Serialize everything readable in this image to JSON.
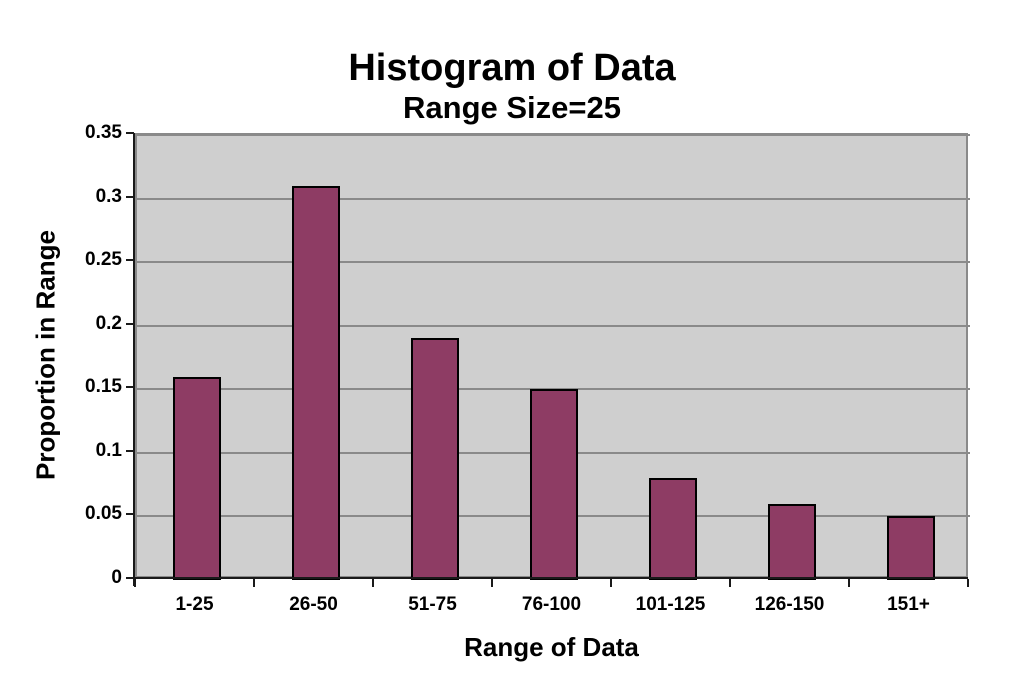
{
  "chart_data": {
    "type": "bar",
    "title": "Histogram of Data",
    "subtitle": "Range Size=25",
    "xlabel": "Range of Data",
    "ylabel": "Proportion in Range",
    "categories": [
      "1-25",
      "26-50",
      "51-75",
      "76-100",
      "101-125",
      "126-150",
      "151+"
    ],
    "values": [
      0.16,
      0.31,
      0.19,
      0.15,
      0.08,
      0.06,
      0.05
    ],
    "ylim": [
      0,
      0.35
    ],
    "ytick_step": 0.05,
    "ytick_labels": [
      "0",
      "0.05",
      "0.1",
      "0.15",
      "0.2",
      "0.25",
      "0.3",
      "0.35"
    ],
    "grid": "horizontal",
    "legend_position": "none",
    "colors": {
      "bar_fill": "#8E3C64",
      "bar_border": "#000000",
      "plot_background": "#CFCFCF",
      "gridline": "#8A8A8A",
      "axis": "#1a1a1a",
      "text": "#000000",
      "page_background": "#FFFFFF"
    }
  }
}
